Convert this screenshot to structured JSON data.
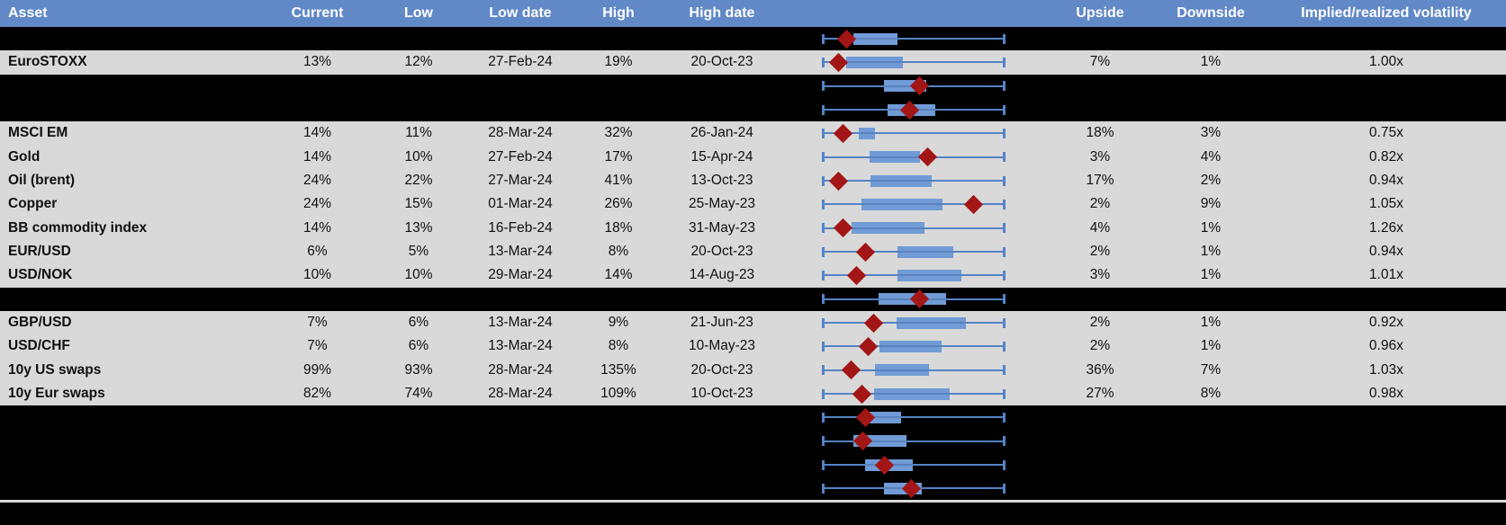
{
  "colors": {
    "header-blue": "#6189c7",
    "header-text": "#ffffff",
    "row-gray": "#d9d9d9",
    "body-text": "#101010",
    "whisker-blue": "#5484c6",
    "box-blue": "#709bd6",
    "diamond-red": "#a31616",
    "divider-gray": "#d9d9d9"
  },
  "header": {
    "columns": [
      {
        "key": "asset",
        "label": "Asset"
      },
      {
        "key": "current",
        "label": "Current"
      },
      {
        "key": "low",
        "label": "Low"
      },
      {
        "key": "low_date",
        "label": "Low date"
      },
      {
        "key": "high",
        "label": "High"
      },
      {
        "key": "high_date",
        "label": "High date"
      },
      {
        "key": "upside",
        "label": "Upside"
      },
      {
        "key": "downside",
        "label": "Downside"
      },
      {
        "key": "iv",
        "label": "Implied/realized volatility"
      }
    ]
  },
  "chart_data": {
    "type": "boxplot",
    "legend": "red diamond = current implied volatility; whiskers span low-high range; blue box = middle range (normalized 0-1 fractions of whisker span)",
    "rows": [
      {
        "kind": "hidden",
        "box": [
          0.17,
          0.41
        ],
        "diamond": 0.134
      },
      {
        "kind": "data",
        "asset": "EuroSTOXX",
        "current": "13%",
        "low": "12%",
        "low_date": "27-Feb-24",
        "high": "19%",
        "high_date": "20-Oct-23",
        "upside": "7%",
        "downside": "1%",
        "iv": "1.00x",
        "box": [
          0.13,
          0.44
        ],
        "diamond": 0.093
      },
      {
        "kind": "hidden",
        "box": [
          0.34,
          0.57
        ],
        "diamond": 0.53
      },
      {
        "kind": "hidden",
        "box": [
          0.36,
          0.62
        ],
        "diamond": 0.48
      },
      {
        "kind": "data",
        "asset": "MSCI EM",
        "current": "14%",
        "low": "11%",
        "low_date": "28-Mar-24",
        "high": "32%",
        "high_date": "26-Jan-24",
        "upside": "18%",
        "downside": "3%",
        "iv": "0.75x",
        "box": [
          0.2,
          0.29
        ],
        "diamond": 0.117
      },
      {
        "kind": "data",
        "asset": "Gold",
        "current": "14%",
        "low": "10%",
        "low_date": "27-Feb-24",
        "high": "17%",
        "high_date": "15-Apr-24",
        "upside": "3%",
        "downside": "4%",
        "iv": "0.82x",
        "box": [
          0.26,
          0.535
        ],
        "diamond": 0.574
      },
      {
        "kind": "data",
        "asset": "Oil (brent)",
        "current": "24%",
        "low": "22%",
        "low_date": "27-Mar-24",
        "high": "41%",
        "high_date": "13-Oct-23",
        "upside": "17%",
        "downside": "2%",
        "iv": "0.94x",
        "box": [
          0.266,
          0.6
        ],
        "diamond": 0.09
      },
      {
        "kind": "data",
        "asset": "Copper",
        "current": "24%",
        "low": "15%",
        "low_date": "01-Mar-24",
        "high": "26%",
        "high_date": "25-May-23",
        "upside": "2%",
        "downside": "9%",
        "iv": "1.05x",
        "box": [
          0.215,
          0.656
        ],
        "diamond": 0.824
      },
      {
        "kind": "data",
        "asset": "BB commodity index",
        "current": "14%",
        "low": "13%",
        "low_date": "16-Feb-24",
        "high": "18%",
        "high_date": "31-May-23",
        "upside": "4%",
        "downside": "1%",
        "iv": "1.26x",
        "box": [
          0.16,
          0.558
        ],
        "diamond": 0.117
      },
      {
        "kind": "data",
        "asset": "EUR/USD",
        "current": "6%",
        "low": "5%",
        "low_date": "13-Mar-24",
        "high": "8%",
        "high_date": "20-Oct-23",
        "upside": "2%",
        "downside": "1%",
        "iv": "0.94x",
        "box": [
          0.413,
          0.714
        ],
        "diamond": 0.24
      },
      {
        "kind": "data",
        "asset": "USD/NOK",
        "current": "10%",
        "low": "10%",
        "low_date": "29-Mar-24",
        "high": "14%",
        "high_date": "14-Aug-23",
        "upside": "3%",
        "downside": "1%",
        "iv": "1.01x",
        "box": [
          0.413,
          0.758
        ],
        "diamond": 0.188
      },
      {
        "kind": "hidden",
        "box": [
          0.307,
          0.677
        ],
        "diamond": 0.53
      },
      {
        "kind": "data",
        "asset": "GBP/USD",
        "current": "7%",
        "low": "6%",
        "low_date": "13-Mar-24",
        "high": "9%",
        "high_date": "21-Jun-23",
        "upside": "2%",
        "downside": "1%",
        "iv": "0.92x",
        "box": [
          0.408,
          0.783
        ],
        "diamond": 0.281
      },
      {
        "kind": "data",
        "asset": "USD/CHF",
        "current": "7%",
        "low": "6%",
        "low_date": "13-Mar-24",
        "high": "8%",
        "high_date": "10-May-23",
        "upside": "2%",
        "downside": "1%",
        "iv": "0.96x",
        "box": [
          0.313,
          0.652
        ],
        "diamond": 0.253
      },
      {
        "kind": "data",
        "asset": "10y US swaps",
        "current": "99%",
        "low": "93%",
        "low_date": "28-Mar-24",
        "high": "135%",
        "high_date": "20-Oct-23",
        "upside": "36%",
        "downside": "7%",
        "iv": "1.03x",
        "box": [
          0.291,
          0.584
        ],
        "diamond": 0.158
      },
      {
        "kind": "data",
        "asset": "10y Eur swaps",
        "current": "82%",
        "low": "74%",
        "low_date": "28-Mar-24",
        "high": "109%",
        "high_date": "10-Oct-23",
        "upside": "27%",
        "downside": "8%",
        "iv": "0.98x",
        "box": [
          0.286,
          0.698
        ],
        "diamond": 0.22
      },
      {
        "kind": "hidden",
        "box": [
          0.25,
          0.432
        ],
        "diamond": 0.24
      },
      {
        "kind": "hidden",
        "box": [
          0.171,
          0.46
        ],
        "diamond": 0.225
      },
      {
        "kind": "hidden",
        "box": [
          0.237,
          0.497
        ],
        "diamond": 0.342
      },
      {
        "kind": "hidden",
        "box": [
          0.34,
          0.546
        ],
        "diamond": 0.487
      }
    ]
  }
}
